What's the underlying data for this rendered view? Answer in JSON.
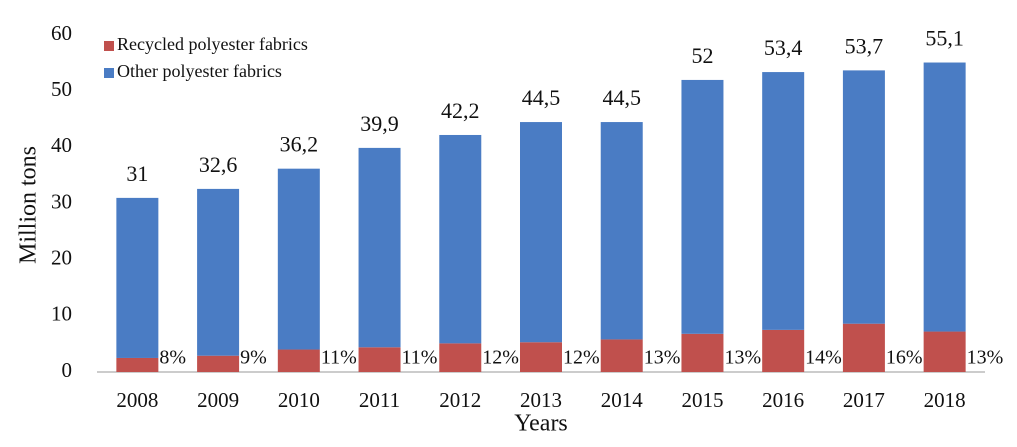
{
  "chart_data": {
    "type": "stacked-bar",
    "x_label": "Years",
    "y_label": "Million tons",
    "categories": [
      "2008",
      "2009",
      "2010",
      "2011",
      "2012",
      "2013",
      "2014",
      "2015",
      "2016",
      "2017",
      "2018"
    ],
    "series": [
      {
        "name": "Recycled polyester fabrics",
        "color": "#c0504d",
        "values": [
          2.5,
          2.9,
          4.0,
          4.4,
          5.1,
          5.3,
          5.8,
          6.8,
          7.5,
          8.6,
          7.2
        ]
      },
      {
        "name": "Other polyester fabrics",
        "color": "#4a7cc4",
        "values": [
          28.5,
          29.7,
          32.2,
          35.5,
          37.1,
          39.2,
          38.7,
          45.2,
          45.9,
          45.1,
          47.9
        ]
      }
    ],
    "totals": {
      "values": [
        31,
        32.6,
        36.2,
        39.9,
        42.2,
        44.5,
        44.5,
        52,
        53.4,
        53.7,
        55.1
      ],
      "value_labels": [
        "31",
        "32,6",
        "36,2",
        "39,9",
        "42,2",
        "44,5",
        "44,5",
        "52",
        "53,4",
        "53,7",
        "55,1"
      ]
    },
    "shares": {
      "values": [
        8,
        9,
        11,
        11,
        12,
        12,
        13,
        13,
        14,
        16,
        13
      ],
      "value_labels": [
        "8%",
        "9%",
        "11%",
        "11%",
        "12%",
        "12%",
        "13%",
        "13%",
        "14%",
        "16%",
        "13%"
      ]
    },
    "ylim": [
      0,
      60
    ],
    "yticks": [
      0,
      10,
      20,
      30,
      40,
      50,
      60
    ],
    "grid": false,
    "legend": "top-left"
  }
}
